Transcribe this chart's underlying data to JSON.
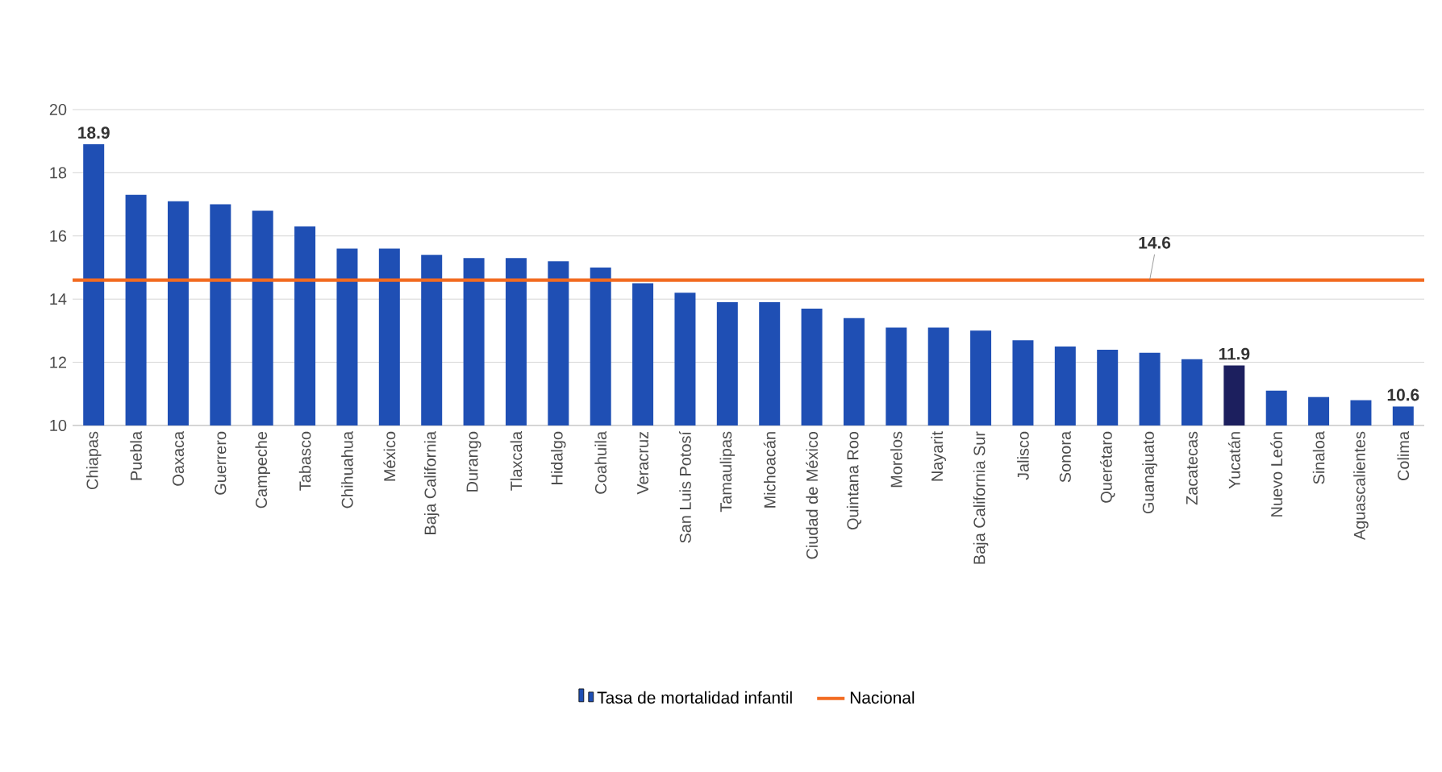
{
  "chart_data": {
    "type": "bar",
    "categories": [
      "Chiapas",
      "Puebla",
      "Oaxaca",
      "Guerrero",
      "Campeche",
      "Tabasco",
      "Chihuahua",
      "México",
      "Baja California",
      "Durango",
      "Tlaxcala",
      "Hidalgo",
      "Coahuila",
      "Veracruz",
      "San Luis Potosí",
      "Tamaulipas",
      "Michoacán",
      "Ciudad de México",
      "Quintana Roo",
      "Morelos",
      "Nayarit",
      "Baja California Sur",
      "Jalisco",
      "Sonora",
      "Querétaro",
      "Guanajuato",
      "Zacatecas",
      "Yucatán",
      "Nuevo León",
      "Sinaloa",
      "Aguascalientes",
      "Colima"
    ],
    "series": [
      {
        "name": "Tasa de mortalidad infantil",
        "color": "#1f4fb4",
        "values": [
          18.9,
          17.3,
          17.1,
          17.0,
          16.8,
          16.3,
          15.6,
          15.6,
          15.4,
          15.3,
          15.3,
          15.2,
          15.0,
          14.5,
          14.2,
          13.9,
          13.9,
          13.7,
          13.4,
          13.1,
          13.1,
          13.0,
          12.7,
          12.5,
          12.4,
          12.3,
          12.1,
          11.9,
          11.1,
          10.9,
          10.8,
          10.6
        ],
        "colors": [
          "#1f4fb4",
          "#1f4fb4",
          "#1f4fb4",
          "#1f4fb4",
          "#1f4fb4",
          "#1f4fb4",
          "#1f4fb4",
          "#1f4fb4",
          "#1f4fb4",
          "#1f4fb4",
          "#1f4fb4",
          "#1f4fb4",
          "#1f4fb4",
          "#1f4fb4",
          "#1f4fb4",
          "#1f4fb4",
          "#1f4fb4",
          "#1f4fb4",
          "#1f4fb4",
          "#1f4fb4",
          "#1f4fb4",
          "#1f4fb4",
          "#1f4fb4",
          "#1f4fb4",
          "#1f4fb4",
          "#1f4fb4",
          "#1f4fb4",
          "#1c1f5e",
          "#1f4fb4",
          "#1f4fb4",
          "#1f4fb4",
          "#1f4fb4"
        ],
        "value_labels": [
          "18.9",
          null,
          null,
          null,
          null,
          null,
          null,
          null,
          null,
          null,
          null,
          null,
          null,
          null,
          null,
          null,
          null,
          null,
          null,
          null,
          null,
          null,
          null,
          null,
          null,
          null,
          null,
          "11.9",
          null,
          null,
          null,
          "10.6"
        ]
      }
    ],
    "ylim": [
      10,
      20
    ],
    "yticks": [
      10,
      12,
      14,
      16,
      18,
      20
    ],
    "grid": "y",
    "legend": "bottom",
    "ref_lines": [
      {
        "axis": "y",
        "value": 14.6,
        "label": "Nacional",
        "color": "#f26b21"
      }
    ],
    "annotations": [
      {
        "text": "14.6",
        "x": "Guanajuato",
        "y": 14.6
      }
    ]
  }
}
